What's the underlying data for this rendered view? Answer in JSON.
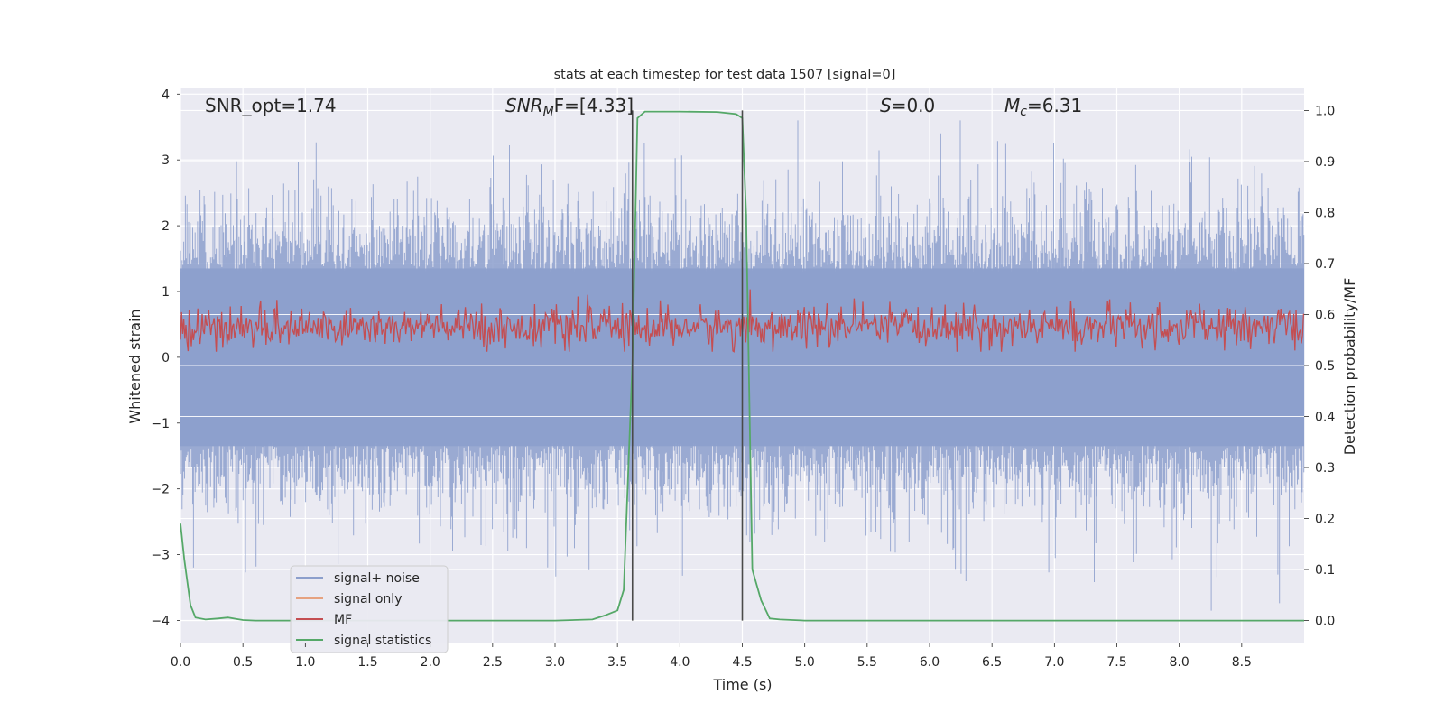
{
  "chart_data": {
    "type": "line",
    "title": "stats at each timestep for test data 1507 [signal=0]",
    "xlabel": "Time (s)",
    "ylabel_left": "Whitened strain",
    "ylabel_right": "Detection probability/MF",
    "xlim": [
      0.0,
      9.0
    ],
    "ylim_left": [
      -4.35,
      4.1
    ],
    "ylim_right": [
      -0.045,
      1.045
    ],
    "x_ticks": [
      "0.0",
      "0.5",
      "1.0",
      "1.5",
      "2.0",
      "2.5",
      "3.0",
      "3.5",
      "4.0",
      "4.5",
      "5.0",
      "5.5",
      "6.0",
      "6.5",
      "7.0",
      "7.5",
      "8.0",
      "8.5"
    ],
    "y_ticks_left": [
      "−4",
      "−3",
      "−2",
      "−1",
      "0",
      "1",
      "2",
      "3",
      "4"
    ],
    "y_ticks_right": [
      "0.0",
      "0.1",
      "0.2",
      "0.3",
      "0.4",
      "0.5",
      "0.6",
      "0.7",
      "0.8",
      "0.9",
      "1.0"
    ],
    "grid": true,
    "annotations": [
      {
        "id": "snr_opt",
        "text": "SNR_opt=1.74"
      },
      {
        "id": "snr_mf",
        "main": "SNR",
        "sub": "M",
        "tail": "F=[4.33]"
      },
      {
        "id": "s_val",
        "main": "S",
        "tail": "=0.0"
      },
      {
        "id": "mc_val",
        "main": "M",
        "sub": "c",
        "tail": "=6.31"
      }
    ],
    "vertical_markers_x": [
      3.62,
      4.5
    ],
    "legend": {
      "placement": "lower-left",
      "entries": [
        {
          "label": "signal+ noise",
          "color": "#8c9fcc"
        },
        {
          "label": "signal only",
          "color": "#e6a280"
        },
        {
          "label": "MF",
          "color": "#c44e52"
        },
        {
          "label": "signal statistics",
          "color": "#55a868"
        }
      ]
    },
    "series": [
      {
        "name": "signal+ noise",
        "axis": "left",
        "color": "#8c9fcc",
        "note": "noisy whitened strain, roughly -3.8 to 3.6, spanning 0-9 s"
      },
      {
        "name": "signal only",
        "axis": "left",
        "color": "#e6a280",
        "values": []
      },
      {
        "name": "MF",
        "axis": "right",
        "color": "#c44e52",
        "note": "noisy matched-filter output, roughly 0.53 to 0.65"
      },
      {
        "name": "signal statistics",
        "axis": "right",
        "color": "#55a868",
        "x": [
          0.0,
          0.03,
          0.08,
          0.12,
          0.2,
          0.3,
          0.38,
          0.45,
          0.5,
          0.6,
          1.0,
          2.0,
          3.0,
          3.3,
          3.4,
          3.5,
          3.55,
          3.62,
          3.66,
          3.72,
          3.8,
          4.0,
          4.3,
          4.45,
          4.5,
          4.53,
          4.58,
          4.65,
          4.72,
          4.8,
          5.0,
          9.0
        ],
        "y": [
          0.19,
          0.12,
          0.03,
          0.006,
          0.002,
          0.004,
          0.006,
          0.003,
          0.001,
          0.0,
          0.0,
          0.0,
          0.0,
          0.002,
          0.01,
          0.02,
          0.06,
          0.51,
          0.985,
          0.998,
          0.998,
          0.998,
          0.997,
          0.993,
          0.985,
          0.8,
          0.1,
          0.04,
          0.004,
          0.002,
          0.0,
          0.0
        ]
      }
    ]
  }
}
